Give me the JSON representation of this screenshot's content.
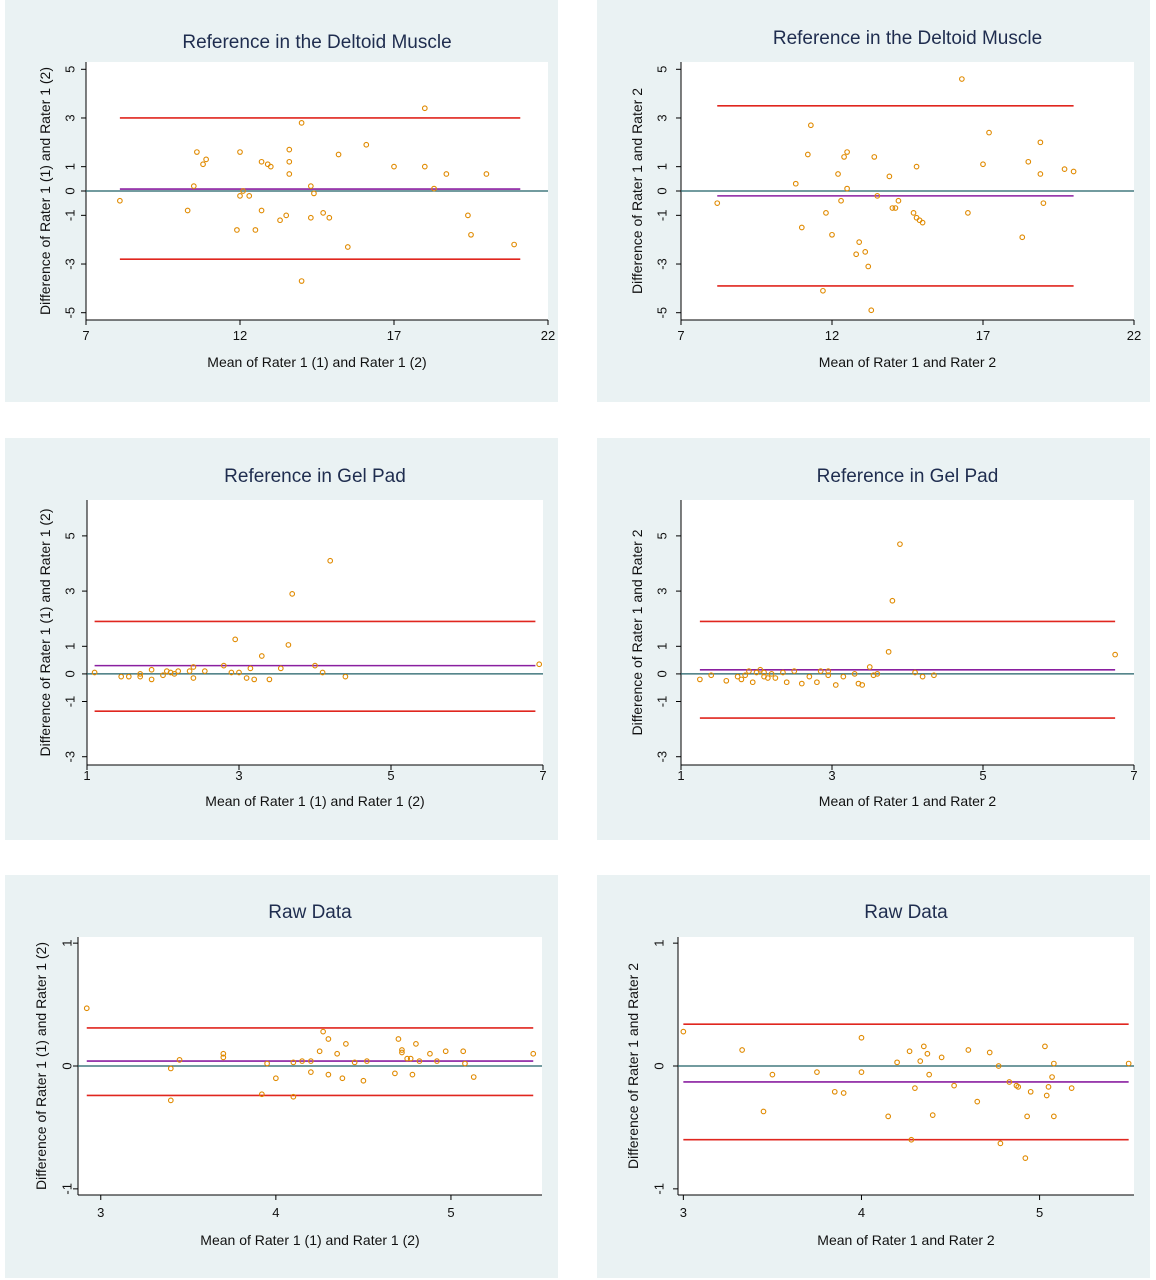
{
  "colors": {
    "panel_bg": "#eaf2f3",
    "plot_bg": "#ffffff",
    "limit_line": "#e0261f",
    "mean_line": "#8a1fa0",
    "zero_line": "#1f5f66",
    "point": "#e08a00",
    "title": "#1f2d4f"
  },
  "chart_data": [
    {
      "type": "scatter",
      "title": "Reference in the Deltoid Muscle",
      "xlabel": "Mean of Rater 1 (1) and Rater 1 (2)",
      "ylabel": "Difference of Rater 1 (1) and Rater 1 (2)",
      "xlim": [
        7,
        22
      ],
      "ylim": [
        -5.3,
        5.3
      ],
      "xticks": [
        7,
        12,
        17,
        22
      ],
      "xtick_labels": [
        "7",
        "12",
        "17",
        "22"
      ],
      "yticks": [
        -5,
        -3,
        -1,
        0,
        1,
        3,
        5
      ],
      "ytick_labels": [
        "-5",
        "-3",
        "-1",
        "0",
        "1",
        "3",
        "5"
      ],
      "upper_loa": 3.0,
      "mean_diff": 0.08,
      "lower_loa": -2.8,
      "line_x": [
        8.1,
        21.1
      ],
      "points": [
        [
          8.1,
          -0.4
        ],
        [
          10.3,
          -0.8
        ],
        [
          10.5,
          0.2
        ],
        [
          10.6,
          1.6
        ],
        [
          10.8,
          1.1
        ],
        [
          10.9,
          1.3
        ],
        [
          11.9,
          -1.6
        ],
        [
          12.0,
          1.6
        ],
        [
          12.0,
          -0.2
        ],
        [
          12.1,
          0.0
        ],
        [
          12.3,
          -0.2
        ],
        [
          12.5,
          -1.6
        ],
        [
          12.7,
          -0.8
        ],
        [
          12.7,
          1.2
        ],
        [
          12.9,
          1.1
        ],
        [
          13.0,
          1.0
        ],
        [
          13.3,
          -1.2
        ],
        [
          13.5,
          -1.0
        ],
        [
          13.6,
          1.7
        ],
        [
          13.6,
          0.7
        ],
        [
          13.6,
          1.2
        ],
        [
          14.0,
          2.8
        ],
        [
          14.0,
          -3.7
        ],
        [
          14.3,
          0.2
        ],
        [
          14.3,
          -1.1
        ],
        [
          14.4,
          -0.1
        ],
        [
          14.7,
          -0.9
        ],
        [
          14.9,
          -1.1
        ],
        [
          15.2,
          1.5
        ],
        [
          15.5,
          -2.3
        ],
        [
          16.1,
          1.9
        ],
        [
          17.0,
          1.0
        ],
        [
          18.0,
          3.4
        ],
        [
          18.0,
          1.0
        ],
        [
          18.3,
          0.1
        ],
        [
          18.7,
          0.7
        ],
        [
          19.4,
          -1.0
        ],
        [
          19.5,
          -1.8
        ],
        [
          20.0,
          0.7
        ],
        [
          20.9,
          -2.2
        ]
      ]
    },
    {
      "type": "scatter",
      "title": "Reference in the Deltoid Muscle",
      "xlabel": "Mean of Rater 1 and Rater 2",
      "ylabel": "Difference of Rater 1 and Rater 2",
      "xlim": [
        7,
        22
      ],
      "ylim": [
        -5.3,
        5.3
      ],
      "xticks": [
        7,
        12,
        17,
        22
      ],
      "xtick_labels": [
        "7",
        "12",
        "17",
        "22"
      ],
      "yticks": [
        -5,
        -3,
        -1,
        0,
        1,
        3,
        5
      ],
      "ytick_labels": [
        "-5",
        "-3",
        "-1",
        "0",
        "1",
        "3",
        "5"
      ],
      "upper_loa": 3.5,
      "mean_diff": -0.2,
      "lower_loa": -3.9,
      "line_x": [
        8.2,
        20.0
      ],
      "points": [
        [
          8.2,
          -0.5
        ],
        [
          10.8,
          0.3
        ],
        [
          11.0,
          -1.5
        ],
        [
          11.2,
          1.5
        ],
        [
          11.3,
          2.7
        ],
        [
          11.7,
          -4.1
        ],
        [
          11.8,
          -0.9
        ],
        [
          12.0,
          -1.8
        ],
        [
          12.2,
          0.7
        ],
        [
          12.3,
          -0.4
        ],
        [
          12.4,
          1.4
        ],
        [
          12.5,
          1.6
        ],
        [
          12.5,
          0.1
        ],
        [
          12.8,
          -2.6
        ],
        [
          12.9,
          -2.1
        ],
        [
          13.1,
          -2.5
        ],
        [
          13.2,
          -3.1
        ],
        [
          13.3,
          -4.9
        ],
        [
          13.4,
          1.4
        ],
        [
          13.5,
          -0.2
        ],
        [
          13.9,
          0.6
        ],
        [
          14.0,
          -0.7
        ],
        [
          14.1,
          -0.7
        ],
        [
          14.2,
          -0.4
        ],
        [
          14.7,
          -0.9
        ],
        [
          14.8,
          1.0
        ],
        [
          14.8,
          -1.1
        ],
        [
          14.9,
          -1.2
        ],
        [
          15.0,
          -1.3
        ],
        [
          16.3,
          4.6
        ],
        [
          16.5,
          -0.9
        ],
        [
          17.0,
          1.1
        ],
        [
          17.2,
          2.4
        ],
        [
          18.3,
          -1.9
        ],
        [
          18.5,
          1.2
        ],
        [
          18.9,
          2.0
        ],
        [
          18.9,
          0.7
        ],
        [
          19.0,
          -0.5
        ],
        [
          19.7,
          0.9
        ],
        [
          20.0,
          0.8
        ]
      ]
    },
    {
      "type": "scatter",
      "title": "Reference in Gel Pad",
      "xlabel": "Mean of Rater 1 (1) and Rater 1 (2)",
      "ylabel": "Difference of Rater 1 (1) and Rater 1 (2)",
      "xlim": [
        1,
        7
      ],
      "ylim": [
        -3.3,
        6.3
      ],
      "xticks": [
        1,
        3,
        5,
        7
      ],
      "xtick_labels": [
        "1",
        "3",
        "5",
        "7"
      ],
      "yticks": [
        -3,
        -1,
        0,
        1,
        3,
        5
      ],
      "ytick_labels": [
        "-3",
        "-1",
        "0",
        "1",
        "3",
        "5"
      ],
      "upper_loa": 1.9,
      "mean_diff": 0.3,
      "lower_loa": -1.35,
      "line_x": [
        1.1,
        6.9
      ],
      "points": [
        [
          1.1,
          0.05
        ],
        [
          1.45,
          -0.1
        ],
        [
          1.55,
          -0.1
        ],
        [
          1.7,
          0.0
        ],
        [
          1.7,
          -0.1
        ],
        [
          1.85,
          0.15
        ],
        [
          1.85,
          -0.2
        ],
        [
          2.0,
          -0.05
        ],
        [
          2.05,
          0.1
        ],
        [
          2.1,
          0.05
        ],
        [
          2.15,
          0.0
        ],
        [
          2.2,
          0.1
        ],
        [
          2.35,
          0.1
        ],
        [
          2.4,
          0.25
        ],
        [
          2.4,
          -0.15
        ],
        [
          2.55,
          0.1
        ],
        [
          2.8,
          0.3
        ],
        [
          2.9,
          0.05
        ],
        [
          2.95,
          1.25
        ],
        [
          3.0,
          0.05
        ],
        [
          3.1,
          -0.15
        ],
        [
          3.15,
          0.2
        ],
        [
          3.2,
          -0.2
        ],
        [
          3.3,
          0.65
        ],
        [
          3.4,
          -0.2
        ],
        [
          3.55,
          0.2
        ],
        [
          3.65,
          1.05
        ],
        [
          3.7,
          2.9
        ],
        [
          4.0,
          0.3
        ],
        [
          4.1,
          0.05
        ],
        [
          4.2,
          4.1
        ],
        [
          4.4,
          -0.1
        ],
        [
          6.95,
          0.35
        ]
      ]
    },
    {
      "type": "scatter",
      "title": "Reference in Gel Pad",
      "xlabel": "Mean of Rater 1 and Rater 2",
      "ylabel": "Difference of Rater 1 and Rater 2",
      "xlim": [
        1,
        7
      ],
      "ylim": [
        -3.3,
        6.3
      ],
      "xticks": [
        1,
        3,
        5,
        7
      ],
      "xtick_labels": [
        "1",
        "3",
        "5",
        "7"
      ],
      "yticks": [
        -3,
        -1,
        0,
        1,
        3,
        5
      ],
      "ytick_labels": [
        "-3",
        "-1",
        "0",
        "1",
        "3",
        "5"
      ],
      "upper_loa": 1.9,
      "mean_diff": 0.15,
      "lower_loa": -1.6,
      "line_x": [
        1.25,
        6.75
      ],
      "points": [
        [
          1.25,
          -0.2
        ],
        [
          1.4,
          -0.05
        ],
        [
          1.6,
          -0.25
        ],
        [
          1.75,
          -0.1
        ],
        [
          1.8,
          -0.2
        ],
        [
          1.85,
          -0.05
        ],
        [
          1.9,
          0.1
        ],
        [
          1.95,
          -0.3
        ],
        [
          2.0,
          0.05
        ],
        [
          2.05,
          0.15
        ],
        [
          2.1,
          -0.1
        ],
        [
          2.1,
          0.05
        ],
        [
          2.15,
          -0.15
        ],
        [
          2.2,
          0.0
        ],
        [
          2.25,
          -0.15
        ],
        [
          2.35,
          0.05
        ],
        [
          2.4,
          -0.3
        ],
        [
          2.5,
          0.1
        ],
        [
          2.6,
          -0.35
        ],
        [
          2.7,
          -0.1
        ],
        [
          2.8,
          -0.3
        ],
        [
          2.85,
          0.1
        ],
        [
          2.95,
          -0.05
        ],
        [
          2.95,
          0.1
        ],
        [
          3.05,
          -0.4
        ],
        [
          3.15,
          -0.1
        ],
        [
          3.3,
          0.0
        ],
        [
          3.35,
          -0.35
        ],
        [
          3.4,
          -0.4
        ],
        [
          3.5,
          0.25
        ],
        [
          3.55,
          -0.05
        ],
        [
          3.6,
          0.0
        ],
        [
          3.75,
          0.8
        ],
        [
          3.8,
          2.65
        ],
        [
          3.9,
          4.7
        ],
        [
          4.1,
          0.05
        ],
        [
          4.2,
          -0.1
        ],
        [
          4.35,
          -0.05
        ],
        [
          6.75,
          0.7
        ]
      ]
    },
    {
      "type": "scatter",
      "title": "Raw Data",
      "xlabel": "Mean of Rater 1 (1) and Rater 1 (2)",
      "ylabel": "Difference of Rater 1 (1) and Rater 1 (2)",
      "xlim": [
        2.87,
        5.52
      ],
      "ylim": [
        -1.05,
        1.05
      ],
      "xticks": [
        3,
        4,
        5
      ],
      "xtick_labels": [
        "3",
        "4",
        "5"
      ],
      "yticks": [
        -1,
        0,
        1
      ],
      "ytick_labels": [
        "-1",
        "0",
        "1"
      ],
      "upper_loa": 0.31,
      "mean_diff": 0.04,
      "lower_loa": -0.24,
      "line_x": [
        2.92,
        5.47
      ],
      "points": [
        [
          2.92,
          0.47
        ],
        [
          3.4,
          -0.02
        ],
        [
          3.4,
          -0.28
        ],
        [
          3.45,
          0.05
        ],
        [
          3.7,
          0.07
        ],
        [
          3.7,
          0.1
        ],
        [
          3.92,
          -0.23
        ],
        [
          3.95,
          0.02
        ],
        [
          4.0,
          -0.1
        ],
        [
          4.1,
          0.03
        ],
        [
          4.1,
          -0.25
        ],
        [
          4.15,
          0.04
        ],
        [
          4.2,
          0.04
        ],
        [
          4.2,
          -0.05
        ],
        [
          4.25,
          0.12
        ],
        [
          4.27,
          0.28
        ],
        [
          4.3,
          0.22
        ],
        [
          4.3,
          -0.07
        ],
        [
          4.35,
          0.1
        ],
        [
          4.38,
          -0.1
        ],
        [
          4.4,
          0.18
        ],
        [
          4.45,
          0.03
        ],
        [
          4.5,
          -0.12
        ],
        [
          4.52,
          0.04
        ],
        [
          4.68,
          -0.06
        ],
        [
          4.7,
          0.22
        ],
        [
          4.72,
          0.11
        ],
        [
          4.72,
          0.13
        ],
        [
          4.75,
          0.06
        ],
        [
          4.77,
          0.06
        ],
        [
          4.78,
          -0.07
        ],
        [
          4.8,
          0.18
        ],
        [
          4.82,
          0.04
        ],
        [
          4.88,
          0.1
        ],
        [
          4.92,
          0.04
        ],
        [
          4.97,
          0.12
        ],
        [
          5.07,
          0.12
        ],
        [
          5.08,
          0.02
        ],
        [
          5.13,
          -0.09
        ],
        [
          5.47,
          0.1
        ]
      ]
    },
    {
      "type": "scatter",
      "title": "Raw Data",
      "xlabel": "Mean of Rater 1 and Rater 2",
      "ylabel": "Difference of Rater 1 and Rater 2",
      "xlim": [
        2.97,
        5.53
      ],
      "ylim": [
        -1.05,
        1.05
      ],
      "xticks": [
        3,
        4,
        5
      ],
      "xtick_labels": [
        "3",
        "4",
        "5"
      ],
      "yticks": [
        -1,
        0,
        1
      ],
      "ytick_labels": [
        "-1",
        "0",
        "1"
      ],
      "upper_loa": 0.34,
      "mean_diff": -0.13,
      "lower_loa": -0.6,
      "line_x": [
        3.0,
        5.5
      ],
      "points": [
        [
          3.0,
          0.28
        ],
        [
          3.33,
          0.13
        ],
        [
          3.45,
          -0.37
        ],
        [
          3.5,
          -0.07
        ],
        [
          3.75,
          -0.05
        ],
        [
          3.85,
          -0.21
        ],
        [
          3.9,
          -0.22
        ],
        [
          4.0,
          0.23
        ],
        [
          4.0,
          -0.05
        ],
        [
          4.15,
          -0.41
        ],
        [
          4.2,
          0.03
        ],
        [
          4.27,
          0.12
        ],
        [
          4.28,
          -0.6
        ],
        [
          4.3,
          -0.18
        ],
        [
          4.33,
          0.04
        ],
        [
          4.35,
          0.16
        ],
        [
          4.37,
          0.1
        ],
        [
          4.38,
          -0.07
        ],
        [
          4.4,
          -0.4
        ],
        [
          4.45,
          0.07
        ],
        [
          4.52,
          -0.16
        ],
        [
          4.6,
          0.13
        ],
        [
          4.65,
          -0.29
        ],
        [
          4.72,
          0.11
        ],
        [
          4.77,
          0.0
        ],
        [
          4.78,
          -0.63
        ],
        [
          4.83,
          -0.13
        ],
        [
          4.87,
          -0.16
        ],
        [
          4.88,
          -0.17
        ],
        [
          4.92,
          -0.75
        ],
        [
          4.93,
          -0.41
        ],
        [
          4.95,
          -0.21
        ],
        [
          5.03,
          0.16
        ],
        [
          5.04,
          -0.24
        ],
        [
          5.05,
          -0.17
        ],
        [
          5.07,
          -0.09
        ],
        [
          5.08,
          0.02
        ],
        [
          5.08,
          -0.41
        ],
        [
          5.18,
          -0.18
        ],
        [
          5.5,
          0.02
        ]
      ]
    }
  ]
}
